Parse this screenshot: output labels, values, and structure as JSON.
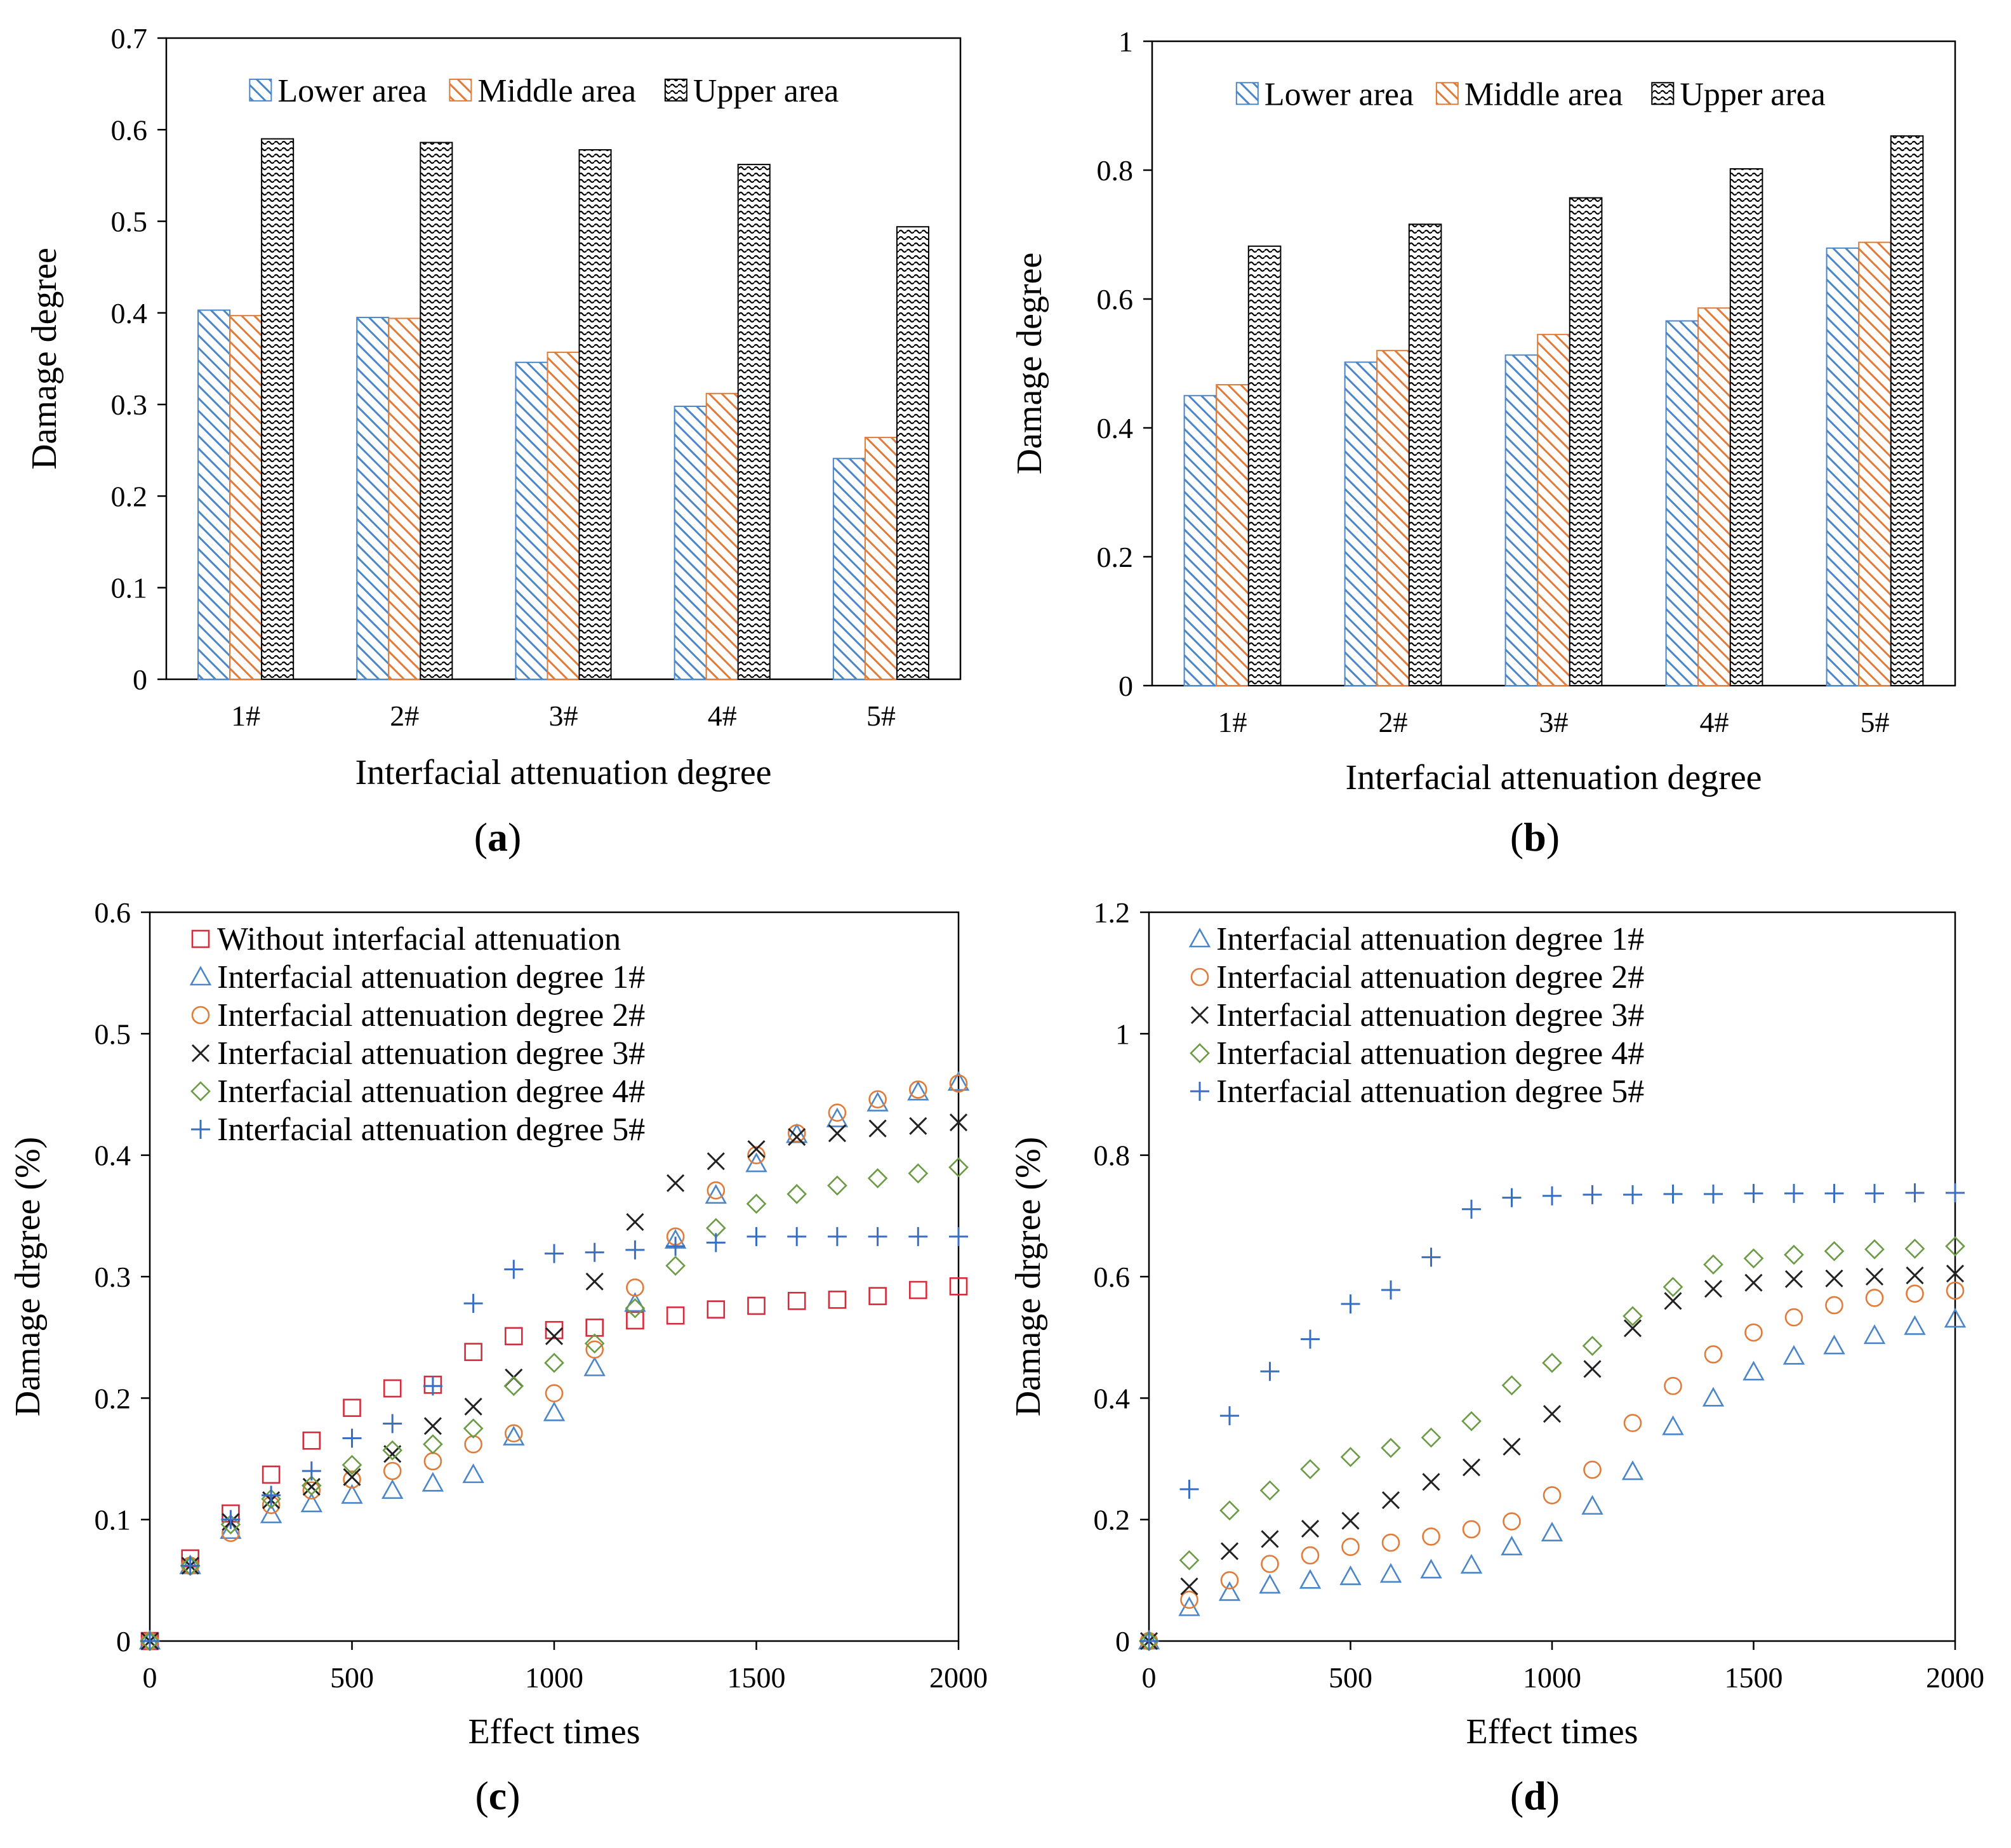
{
  "figure": {
    "captions": [
      "a",
      "b",
      "c",
      "d"
    ]
  },
  "chart_data": [
    {
      "id": "a",
      "type": "bar",
      "xlabel": "Interfacial attenuation degree",
      "ylabel": "Damage degree",
      "ylim": [
        0,
        0.7
      ],
      "yticks": [
        "0",
        "0.1",
        "0.2",
        "0.3",
        "0.4",
        "0.5",
        "0.6",
        "0.7"
      ],
      "categories": [
        "1#",
        "2#",
        "3#",
        "4#",
        "5#"
      ],
      "legend_position": "top",
      "series": [
        {
          "name": "Lower area",
          "color": "#4A86C8",
          "pattern": "hatch",
          "values": [
            0.403,
            0.395,
            0.346,
            0.298,
            0.241
          ]
        },
        {
          "name": "Middle area",
          "color": "#E07B39",
          "pattern": "hatch",
          "values": [
            0.397,
            0.394,
            0.357,
            0.312,
            0.264
          ]
        },
        {
          "name": "Upper area",
          "color": "#000000",
          "pattern": "wave",
          "values": [
            0.59,
            0.586,
            0.578,
            0.562,
            0.494
          ]
        }
      ]
    },
    {
      "id": "b",
      "type": "bar",
      "xlabel": "Interfacial attenuation degree",
      "ylabel": "Damage degree",
      "ylim": [
        0,
        1
      ],
      "yticks": [
        "0",
        "0.2",
        "0.4",
        "0.6",
        "0.8",
        "1"
      ],
      "categories": [
        "1#",
        "2#",
        "3#",
        "4#",
        "5#"
      ],
      "legend_position": "top",
      "series": [
        {
          "name": "Lower area",
          "color": "#4A86C8",
          "pattern": "hatch",
          "values": [
            0.45,
            0.502,
            0.513,
            0.566,
            0.679
          ]
        },
        {
          "name": "Middle area",
          "color": "#E07B39",
          "pattern": "hatch",
          "values": [
            0.467,
            0.52,
            0.545,
            0.586,
            0.688
          ]
        },
        {
          "name": "Upper area",
          "color": "#000000",
          "pattern": "wave",
          "values": [
            0.682,
            0.716,
            0.757,
            0.802,
            0.853
          ]
        }
      ]
    },
    {
      "id": "c",
      "type": "scatter",
      "xlabel": "Effect times",
      "ylabel": "Damage drgree (%)",
      "xlim": [
        0,
        2000
      ],
      "ylim": [
        0,
        0.6
      ],
      "xticks": [
        "0",
        "500",
        "1000",
        "1500",
        "2000"
      ],
      "yticks": [
        "0",
        "0.1",
        "0.2",
        "0.3",
        "0.4",
        "0.5",
        "0.6"
      ],
      "legend_position": "top-left",
      "x": [
        0,
        100,
        200,
        300,
        400,
        500,
        600,
        700,
        800,
        900,
        1000,
        1100,
        1200,
        1300,
        1400,
        1500,
        1600,
        1700,
        1800,
        1900,
        2000
      ],
      "series": [
        {
          "name": "Without interfacial attenuation",
          "marker": "square",
          "color": "#D62B3C",
          "values": [
            0,
            0.068,
            0.105,
            0.137,
            0.165,
            0.192,
            0.208,
            0.211,
            0.238,
            0.251,
            0.256,
            0.258,
            0.264,
            0.268,
            0.273,
            0.276,
            0.28,
            0.281,
            0.284,
            0.289,
            0.292
          ]
        },
        {
          "name": "Interfacial attenuation degree 1#",
          "marker": "triangle",
          "color": "#4A86C8",
          "values": [
            0,
            0.062,
            0.091,
            0.104,
            0.113,
            0.12,
            0.124,
            0.13,
            0.137,
            0.168,
            0.188,
            0.225,
            0.278,
            0.33,
            0.367,
            0.393,
            0.417,
            0.43,
            0.443,
            0.452,
            0.46
          ]
        },
        {
          "name": "Interfacial attenuation degree 2#",
          "marker": "circle",
          "color": "#E07B39",
          "values": [
            0,
            0.062,
            0.089,
            0.112,
            0.124,
            0.133,
            0.14,
            0.148,
            0.162,
            0.171,
            0.204,
            0.24,
            0.291,
            0.333,
            0.371,
            0.4,
            0.418,
            0.435,
            0.446,
            0.454,
            0.459
          ]
        },
        {
          "name": "Interfacial attenuation degree 3#",
          "marker": "x",
          "color": "#222222",
          "values": [
            0,
            0.062,
            0.098,
            0.116,
            0.127,
            0.135,
            0.154,
            0.177,
            0.193,
            0.217,
            0.251,
            0.296,
            0.345,
            0.377,
            0.395,
            0.405,
            0.415,
            0.418,
            0.422,
            0.424,
            0.427
          ]
        },
        {
          "name": "Interfacial attenuation degree 4#",
          "marker": "diamond",
          "color": "#6B9B45",
          "values": [
            0,
            0.062,
            0.096,
            0.117,
            0.128,
            0.145,
            0.157,
            0.162,
            0.175,
            0.21,
            0.229,
            0.245,
            0.274,
            0.309,
            0.34,
            0.36,
            0.368,
            0.375,
            0.381,
            0.385,
            0.39
          ]
        },
        {
          "name": "Interfacial attenuation degree 5#",
          "marker": "plus",
          "color": "#3A6FC0",
          "values": [
            0,
            0.062,
            0.1,
            0.12,
            0.14,
            0.167,
            0.179,
            0.21,
            0.278,
            0.306,
            0.319,
            0.32,
            0.322,
            0.325,
            0.328,
            0.333,
            0.333,
            0.333,
            0.333,
            0.333,
            0.333
          ]
        }
      ]
    },
    {
      "id": "d",
      "type": "scatter",
      "xlabel": "Effect times",
      "ylabel": "Damage drgree (%)",
      "xlim": [
        0,
        2000
      ],
      "ylim": [
        0,
        1.2
      ],
      "xticks": [
        "0",
        "500",
        "1000",
        "1500",
        "2000"
      ],
      "yticks": [
        "0",
        "0.2",
        "0.4",
        "0.6",
        "0.8",
        "1",
        "1.2"
      ],
      "legend_position": "top-left",
      "x": [
        0,
        100,
        200,
        300,
        400,
        500,
        600,
        700,
        800,
        900,
        1000,
        1100,
        1200,
        1300,
        1400,
        1500,
        1600,
        1700,
        1800,
        1900,
        2000
      ],
      "series": [
        {
          "name": "Interfacial attenuation degree 1#",
          "marker": "triangle",
          "color": "#4A86C8",
          "values": [
            0,
            0.055,
            0.08,
            0.092,
            0.1,
            0.106,
            0.11,
            0.117,
            0.125,
            0.155,
            0.178,
            0.222,
            0.279,
            0.353,
            0.4,
            0.443,
            0.469,
            0.486,
            0.503,
            0.518,
            0.53
          ]
        },
        {
          "name": "Interfacial attenuation degree 2#",
          "marker": "circle",
          "color": "#E07B39",
          "values": [
            0,
            0.068,
            0.1,
            0.127,
            0.141,
            0.155,
            0.162,
            0.172,
            0.184,
            0.197,
            0.24,
            0.282,
            0.359,
            0.42,
            0.472,
            0.508,
            0.533,
            0.553,
            0.565,
            0.572,
            0.577
          ]
        },
        {
          "name": "Interfacial attenuation degree 3#",
          "marker": "x",
          "color": "#222222",
          "values": [
            0,
            0.09,
            0.148,
            0.168,
            0.185,
            0.198,
            0.232,
            0.262,
            0.286,
            0.32,
            0.374,
            0.448,
            0.515,
            0.56,
            0.58,
            0.59,
            0.596,
            0.597,
            0.6,
            0.602,
            0.605
          ]
        },
        {
          "name": "Interfacial attenuation degree 4#",
          "marker": "diamond",
          "color": "#6B9B45",
          "values": [
            0,
            0.133,
            0.215,
            0.248,
            0.283,
            0.303,
            0.318,
            0.335,
            0.362,
            0.421,
            0.458,
            0.486,
            0.535,
            0.583,
            0.62,
            0.63,
            0.636,
            0.642,
            0.645,
            0.646,
            0.65
          ]
        },
        {
          "name": "Interfacial attenuation degree 5#",
          "marker": "plus",
          "color": "#3A6FC0",
          "values": [
            0,
            0.25,
            0.371,
            0.444,
            0.497,
            0.555,
            0.578,
            0.632,
            0.711,
            0.73,
            0.733,
            0.735,
            0.735,
            0.736,
            0.736,
            0.737,
            0.737,
            0.737,
            0.737,
            0.738,
            0.738
          ]
        }
      ]
    }
  ]
}
